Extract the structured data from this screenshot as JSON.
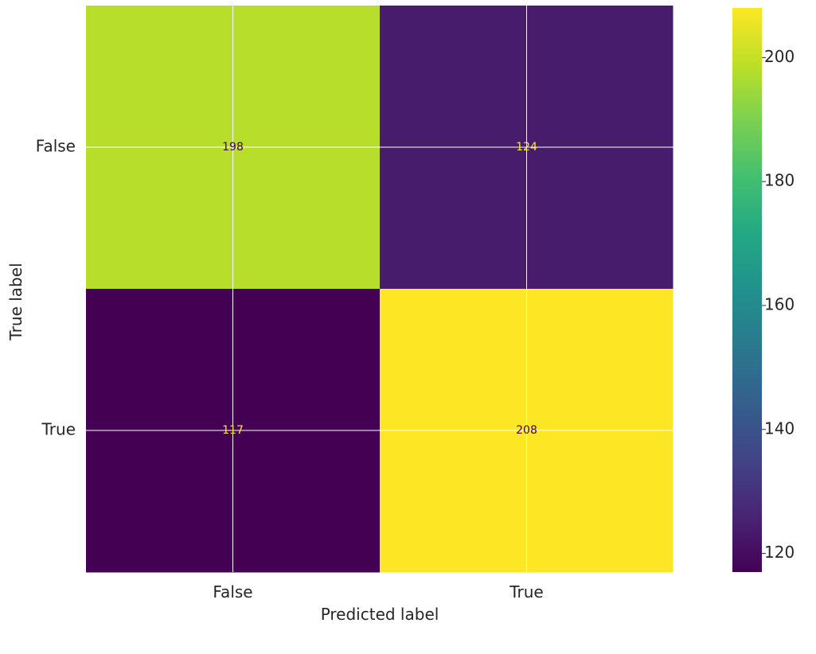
{
  "chart_data": {
    "type": "heatmap",
    "x_categories": [
      "False",
      "True"
    ],
    "y_categories": [
      "False",
      "True"
    ],
    "values": [
      [
        198,
        124
      ],
      [
        117,
        208
      ]
    ],
    "xlabel": "Predicted label",
    "ylabel": "True label",
    "colormap": "viridis",
    "colorbar": {
      "range": [
        117,
        208
      ],
      "ticks": [
        120,
        140,
        160,
        180,
        200
      ]
    },
    "grid": true,
    "grid_color": "#ffffff",
    "text_color_dark": "#440154",
    "text_color_light": "#fde725"
  }
}
